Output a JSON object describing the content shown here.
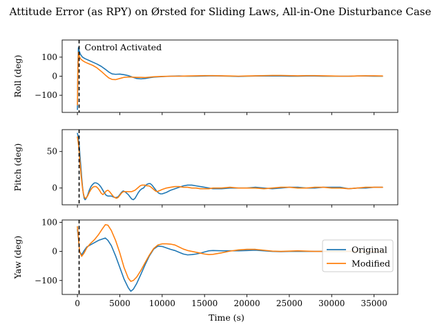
{
  "chart_data": {
    "type": "line",
    "title": "Attitude Error (as RPY) on Ørsted for Sliding Laws, All-in-One Disturbance Case",
    "xlabel": "Time (s)",
    "xlim": [
      -1800,
      37800
    ],
    "xticks": [
      0,
      5000,
      10000,
      15000,
      20000,
      25000,
      30000,
      35000
    ],
    "annotation": {
      "text": "Control Activated",
      "x": 200
    },
    "legend": {
      "position": "right",
      "entries": [
        {
          "label": "Original",
          "color": "#1f77b4"
        },
        {
          "label": "Modified",
          "color": "#ff7f0e"
        }
      ]
    },
    "panels": [
      {
        "id": "roll",
        "ylabel": "Roll (deg)",
        "ylim": [
          -190,
          190
        ],
        "yticks": [
          -100,
          0,
          100
        ],
        "series": [
          {
            "name": "Original",
            "color": "#1f77b4",
            "x": [
              0,
              60,
              120,
              200,
              350,
              600,
              900,
              1300,
              1800,
              2300,
              2800,
              3300,
              3700,
              4100,
              4500,
              5000,
              5500,
              6000,
              6500,
              7000,
              7500,
              8000,
              8500,
              9000,
              10000,
              11000,
              12000,
              13000,
              14000,
              15000,
              16000,
              17000,
              18000,
              19000,
              20000,
              21000,
              22000,
              23000,
              24000,
              25000,
              26000,
              27000,
              28000,
              29000,
              30000,
              31000,
              32000,
              33000,
              34000,
              35000,
              36000
            ],
            "y": [
              -175,
              60,
              150,
              135,
              115,
              100,
              92,
              84,
              74,
              64,
              52,
              36,
              22,
              12,
              10,
              11,
              8,
              3,
              -5,
              -12,
              -14,
              -12,
              -8,
              -5,
              -2,
              0,
              1,
              0,
              0,
              1,
              2,
              1,
              0,
              -1,
              0,
              1,
              1,
              1,
              1,
              0,
              0,
              1,
              1,
              0,
              0,
              0,
              0,
              1,
              1,
              0,
              0
            ]
          },
          {
            "name": "Modified",
            "color": "#ff7f0e",
            "x": [
              0,
              60,
              120,
              200,
              350,
              600,
              900,
              1300,
              1800,
              2300,
              2800,
              3300,
              3700,
              4100,
              4500,
              5000,
              5500,
              6000,
              6500,
              7000,
              7500,
              8000,
              8500,
              9000,
              10000,
              11000,
              12000,
              13000,
              14000,
              15000,
              16000,
              17000,
              18000,
              19000,
              20000,
              21000,
              22000,
              23000,
              24000,
              25000,
              26000,
              27000,
              28000,
              29000,
              30000,
              31000,
              32000,
              33000,
              34000,
              35000,
              36000
            ],
            "y": [
              -150,
              40,
              125,
              108,
              92,
              82,
              74,
              66,
              57,
              44,
              26,
              6,
              -9,
              -17,
              -18,
              -12,
              -6,
              -4,
              -5,
              -6,
              -6,
              -7,
              -5,
              -3,
              -1,
              0,
              0,
              1,
              2,
              3,
              3,
              2,
              1,
              0,
              1,
              2,
              3,
              4,
              4,
              3,
              2,
              3,
              3,
              2,
              1,
              0,
              0,
              1,
              2,
              2,
              1
            ]
          }
        ]
      },
      {
        "id": "pitch",
        "ylabel": "Pitch (deg)",
        "ylim": [
          -23,
          80
        ],
        "yticks": [
          0,
          50
        ],
        "series": [
          {
            "name": "Original",
            "color": "#1f77b4",
            "x": [
              0,
              100,
              200,
              300,
              400,
              500,
              600,
              700,
              800,
              900,
              1000,
              1200,
              1400,
              1600,
              1800,
              2000,
              2200,
              2400,
              2600,
              2800,
              3000,
              3200,
              3400,
              3600,
              3800,
              4000,
              4200,
              4400,
              4600,
              4800,
              5000,
              5200,
              5400,
              5600,
              5800,
              6000,
              6200,
              6400,
              6600,
              6800,
              7000,
              7200,
              7400,
              7600,
              7800,
              8000,
              8200,
              8400,
              8600,
              8800,
              9000,
              9200,
              9400,
              9600,
              9800,
              10000,
              10500,
              11000,
              11500,
              12000,
              12500,
              13000,
              13500,
              14000,
              14500,
              15000,
              15500,
              16000,
              17000,
              18000,
              19000,
              20000,
              21000,
              22000,
              23000,
              24000,
              25000,
              26000,
              27000,
              28000,
              29000,
              30000,
              31000,
              32000,
              33000,
              34000,
              35000,
              36000
            ],
            "y": [
              75,
              70,
              60,
              45,
              30,
              15,
              2,
              -8,
              -14,
              -16,
              -15,
              -10,
              -3,
              2,
              5,
              7,
              7,
              6,
              4,
              1,
              -3,
              -7,
              -10,
              -11,
              -11,
              -11,
              -12,
              -13,
              -13,
              -12,
              -9,
              -6,
              -4,
              -5,
              -7,
              -9,
              -12,
              -15,
              -16,
              -14,
              -10,
              -6,
              -3,
              -1,
              0,
              3,
              5,
              6,
              6,
              4,
              1,
              -2,
              -5,
              -7,
              -8,
              -8,
              -6,
              -3,
              -1,
              1,
              3,
              4,
              4,
              3,
              2,
              1,
              0,
              -1,
              -1,
              0,
              0,
              0,
              1,
              0,
              -1,
              0,
              1,
              1,
              0,
              0,
              1,
              1,
              1,
              -1,
              0,
              0,
              1,
              1
            ]
          },
          {
            "name": "Modified",
            "color": "#ff7f0e",
            "x": [
              0,
              100,
              200,
              300,
              400,
              500,
              600,
              700,
              800,
              900,
              1000,
              1200,
              1400,
              1600,
              1800,
              2000,
              2200,
              2400,
              2600,
              2800,
              3000,
              3200,
              3400,
              3600,
              3800,
              4000,
              4200,
              4400,
              4600,
              4800,
              5000,
              5200,
              5400,
              5600,
              5800,
              6000,
              6200,
              6400,
              6600,
              6800,
              7000,
              7200,
              7400,
              7600,
              7800,
              8000,
              8200,
              8400,
              8600,
              8800,
              9000,
              9200,
              9400,
              9600,
              9800,
              10000,
              10500,
              11000,
              11500,
              12000,
              12500,
              13000,
              13500,
              14000,
              14500,
              15000,
              15500,
              16000,
              17000,
              18000,
              19000,
              20000,
              21000,
              22000,
              23000,
              24000,
              25000,
              26000,
              27000,
              28000,
              29000,
              30000,
              31000,
              32000,
              33000,
              34000,
              35000,
              36000
            ],
            "y": [
              70,
              62,
              50,
              35,
              22,
              10,
              0,
              -7,
              -12,
              -14,
              -14,
              -11,
              -6,
              -2,
              1,
              2,
              2,
              0,
              -3,
              -7,
              -9,
              -7,
              -4,
              -3,
              -5,
              -8,
              -11,
              -13,
              -14,
              -13,
              -10,
              -7,
              -5,
              -5,
              -5,
              -5,
              -5,
              -5,
              -4,
              -3,
              -1,
              1,
              3,
              4,
              4,
              4,
              3,
              3,
              2,
              0,
              -2,
              -4,
              -5,
              -4,
              -3,
              -2,
              0,
              1,
              2,
              2,
              1,
              1,
              0,
              0,
              -1,
              -1,
              -1,
              0,
              0,
              1,
              0,
              0,
              0,
              -1,
              0,
              1,
              1,
              0,
              0,
              1,
              1,
              0,
              0,
              -1,
              0,
              1,
              1,
              1
            ]
          }
        ]
      },
      {
        "id": "yaw",
        "ylabel": "Yaw (deg)",
        "ylim": [
          -148,
          108
        ],
        "yticks": [
          -100,
          0,
          100
        ],
        "series": [
          {
            "name": "Original",
            "color": "#1f77b4",
            "x": [
              0,
              100,
              250,
              500,
              800,
              1100,
              1500,
              2000,
              2500,
              3000,
              3300,
              3600,
              4000,
              4500,
              5000,
              5500,
              6000,
              6300,
              6600,
              7000,
              7500,
              8000,
              8500,
              9000,
              9500,
              10000,
              10500,
              11000,
              11500,
              12000,
              12500,
              13000,
              13500,
              14000,
              14500,
              15000,
              15500,
              16000,
              17000,
              18000,
              19000,
              20000,
              21000,
              22000,
              23000,
              24000,
              25000,
              26000,
              27000,
              28000,
              29000,
              30000,
              31000,
              32000,
              33000,
              34000,
              35000,
              36000
            ],
            "y": [
              75,
              50,
              0,
              -12,
              3,
              15,
              22,
              30,
              38,
              43,
              46,
              38,
              20,
              -15,
              -55,
              -95,
              -125,
              -137,
              -130,
              -110,
              -78,
              -45,
              -15,
              8,
              18,
              17,
              12,
              7,
              3,
              -3,
              -9,
              -12,
              -11,
              -9,
              -6,
              -2,
              2,
              3,
              2,
              2,
              2,
              3,
              4,
              2,
              0,
              -1,
              0,
              0,
              0,
              0,
              0,
              0,
              0,
              0,
              0,
              0,
              0,
              0
            ]
          },
          {
            "name": "Modified",
            "color": "#ff7f0e",
            "x": [
              0,
              100,
              250,
              500,
              800,
              1100,
              1500,
              2000,
              2500,
              3000,
              3300,
              3600,
              4000,
              4500,
              5000,
              5500,
              6000,
              6300,
              6600,
              7000,
              7500,
              8000,
              8500,
              9000,
              9500,
              10000,
              10500,
              11000,
              11500,
              12000,
              12500,
              13000,
              13500,
              14000,
              14500,
              15000,
              15500,
              16000,
              17000,
              18000,
              19000,
              20000,
              21000,
              22000,
              23000,
              24000,
              25000,
              26000,
              27000,
              28000,
              29000,
              30000,
              31000,
              32000,
              33000,
              34000,
              35000,
              36000
            ],
            "y": [
              85,
              55,
              0,
              -17,
              -5,
              12,
              26,
              40,
              58,
              80,
              92,
              90,
              72,
              38,
              -5,
              -55,
              -92,
              -103,
              -100,
              -88,
              -65,
              -38,
              -12,
              10,
              22,
              26,
              26,
              25,
              22,
              15,
              8,
              3,
              0,
              -3,
              -6,
              -9,
              -11,
              -10,
              -5,
              1,
              5,
              7,
              7,
              4,
              1,
              0,
              1,
              2,
              1,
              0,
              0,
              0,
              0,
              0,
              0,
              0,
              0,
              0
            ]
          }
        ]
      }
    ]
  }
}
